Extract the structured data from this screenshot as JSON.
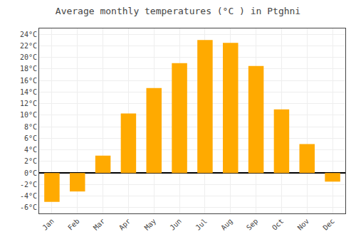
{
  "chart_data": {
    "type": "bar",
    "title": "Average monthly temperatures (°C ) in Ptghni",
    "categories": [
      "Jan",
      "Feb",
      "Mar",
      "Apr",
      "May",
      "Jun",
      "Jul",
      "Aug",
      "Sep",
      "Oct",
      "Nov",
      "Dec"
    ],
    "values": [
      -5.0,
      -3.2,
      3.0,
      10.3,
      14.7,
      19.0,
      23.0,
      22.5,
      18.5,
      11.0,
      5.0,
      -1.5
    ],
    "color": "#FFAA00",
    "ylim": [
      -7,
      25
    ],
    "yticks": [
      {
        "value": -6,
        "label": "-6°C"
      },
      {
        "value": -4,
        "label": "-4°C"
      },
      {
        "value": -2,
        "label": "-2°C"
      },
      {
        "value": 0,
        "label": "0°C"
      },
      {
        "value": 2,
        "label": "2°C"
      },
      {
        "value": 4,
        "label": "4°C"
      },
      {
        "value": 6,
        "label": "6°C"
      },
      {
        "value": 8,
        "label": "8°C"
      },
      {
        "value": 10,
        "label": "10°C"
      },
      {
        "value": 12,
        "label": "12°C"
      },
      {
        "value": 14,
        "label": "14°C"
      },
      {
        "value": 16,
        "label": "16°C"
      },
      {
        "value": 18,
        "label": "18°C"
      },
      {
        "value": 20,
        "label": "20°C"
      },
      {
        "value": 22,
        "label": "22°C"
      },
      {
        "value": 24,
        "label": "24°C"
      }
    ],
    "grid": true
  }
}
